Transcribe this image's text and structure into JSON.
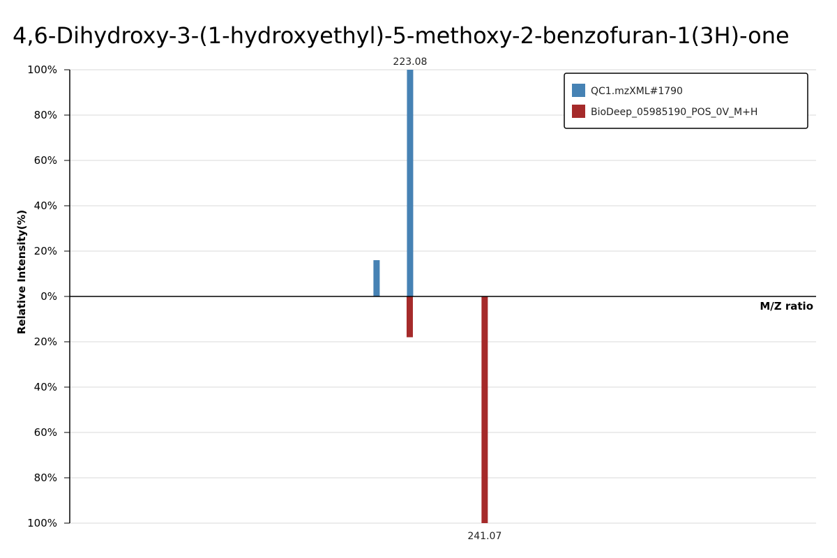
{
  "chart_data": {
    "type": "bar",
    "subtype": "mirror-mass-spectrum",
    "title": "4,6-Dihydroxy-3-(1-hydroxyethyl)-5-methoxy-2-benzofuran-1(3H)-one",
    "xlabel": "M/Z ratio",
    "ylabel": "Relative Intensity(%)",
    "xlim": [
      141.0,
      321.0
    ],
    "ylim": [
      -100,
      100
    ],
    "y_ticks": [
      100,
      80,
      60,
      40,
      20,
      0,
      -20,
      -40,
      -60,
      -80,
      -100
    ],
    "y_tick_labels": [
      "100%",
      "80%",
      "60%",
      "40%",
      "20%",
      "0%",
      "20%",
      "40%",
      "60%",
      "80%",
      "100%"
    ],
    "grid": true,
    "legend": {
      "placement": "top-right"
    },
    "series": [
      {
        "name": "QC1.mzXML#1790",
        "color": "#4682b4",
        "direction": "up",
        "peaks": [
          {
            "mz": 215.0,
            "intensity": 16,
            "label": ""
          },
          {
            "mz": 223.08,
            "intensity": 100,
            "label": "223.08"
          }
        ]
      },
      {
        "name": "BioDeep_05985190_POS_0V_M+H",
        "color": "#a52a2a",
        "direction": "down",
        "peaks": [
          {
            "mz": 223.0,
            "intensity": 18,
            "label": ""
          },
          {
            "mz": 241.07,
            "intensity": 100,
            "label": "241.07"
          }
        ]
      }
    ]
  }
}
